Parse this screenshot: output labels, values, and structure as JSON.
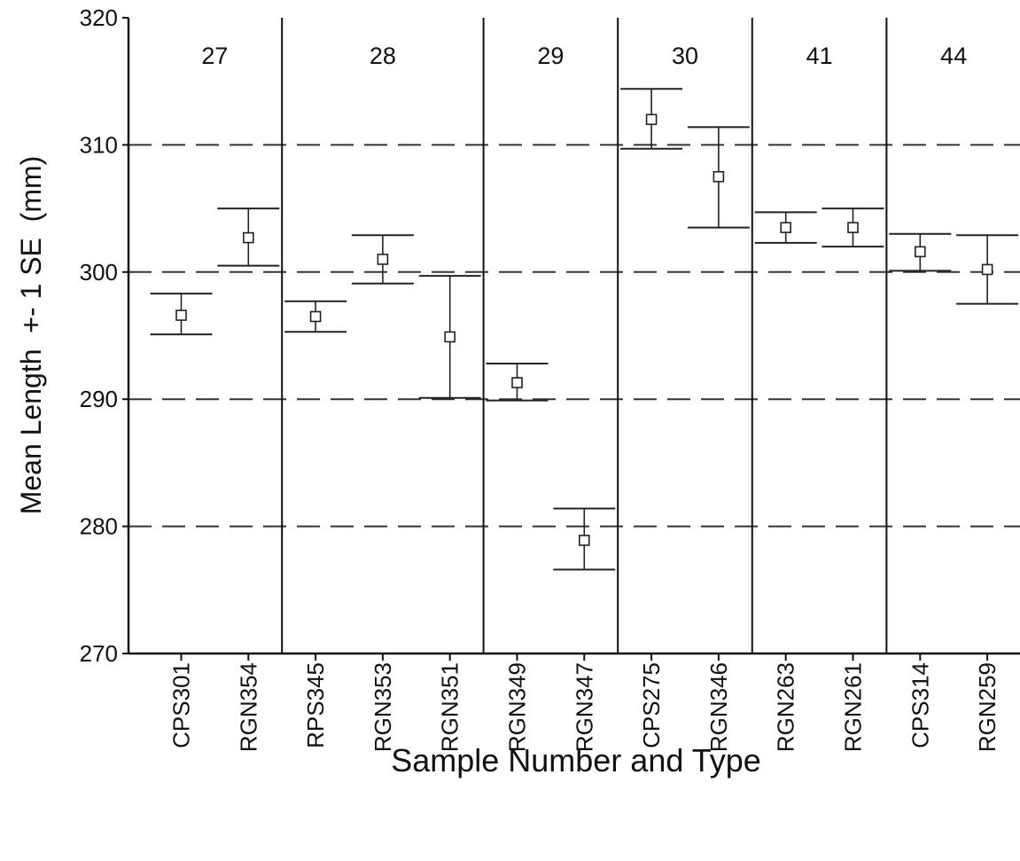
{
  "chart_data": {
    "type": "scatter",
    "title": "",
    "xlabel": "Sample Number and Type",
    "ylabel": "Mean Length  +- 1 SE  (mm)",
    "ylim": [
      270,
      320
    ],
    "yticks": [
      "270",
      "280",
      "290",
      "300",
      "310",
      "320"
    ],
    "grid": "dashed horizontal lines at 280, 290, 300, 310",
    "categories": [
      "CPS301",
      "RGN354",
      "RPS345",
      "RGN353",
      "RGN351",
      "RGN349",
      "RGN347",
      "CPS275",
      "RGN346",
      "RGN263",
      "RGN261",
      "CPS314",
      "RGN259"
    ],
    "groups": [
      {
        "label": "27",
        "members": [
          "CPS301",
          "RGN354"
        ]
      },
      {
        "label": "28",
        "members": [
          "RPS345",
          "RGN353",
          "RGN351"
        ]
      },
      {
        "label": "29",
        "members": [
          "RGN349",
          "RGN347"
        ]
      },
      {
        "label": "30",
        "members": [
          "CPS275",
          "RGN346"
        ]
      },
      {
        "label": "41",
        "members": [
          "RGN263",
          "RGN261"
        ]
      },
      {
        "label": "44",
        "members": [
          "CPS314",
          "RGN259"
        ]
      }
    ],
    "mean": [
      296.6,
      302.7,
      296.5,
      301.0,
      294.9,
      291.3,
      278.9,
      312.0,
      307.5,
      303.5,
      303.5,
      301.6,
      300.2
    ],
    "upper": [
      298.3,
      305.0,
      297.7,
      302.9,
      299.7,
      292.8,
      281.4,
      314.4,
      311.4,
      304.7,
      305.0,
      303.0,
      302.9
    ],
    "lower": [
      295.1,
      300.5,
      295.3,
      299.1,
      290.1,
      289.9,
      276.6,
      309.7,
      303.5,
      302.3,
      302.0,
      300.1,
      297.5
    ]
  }
}
